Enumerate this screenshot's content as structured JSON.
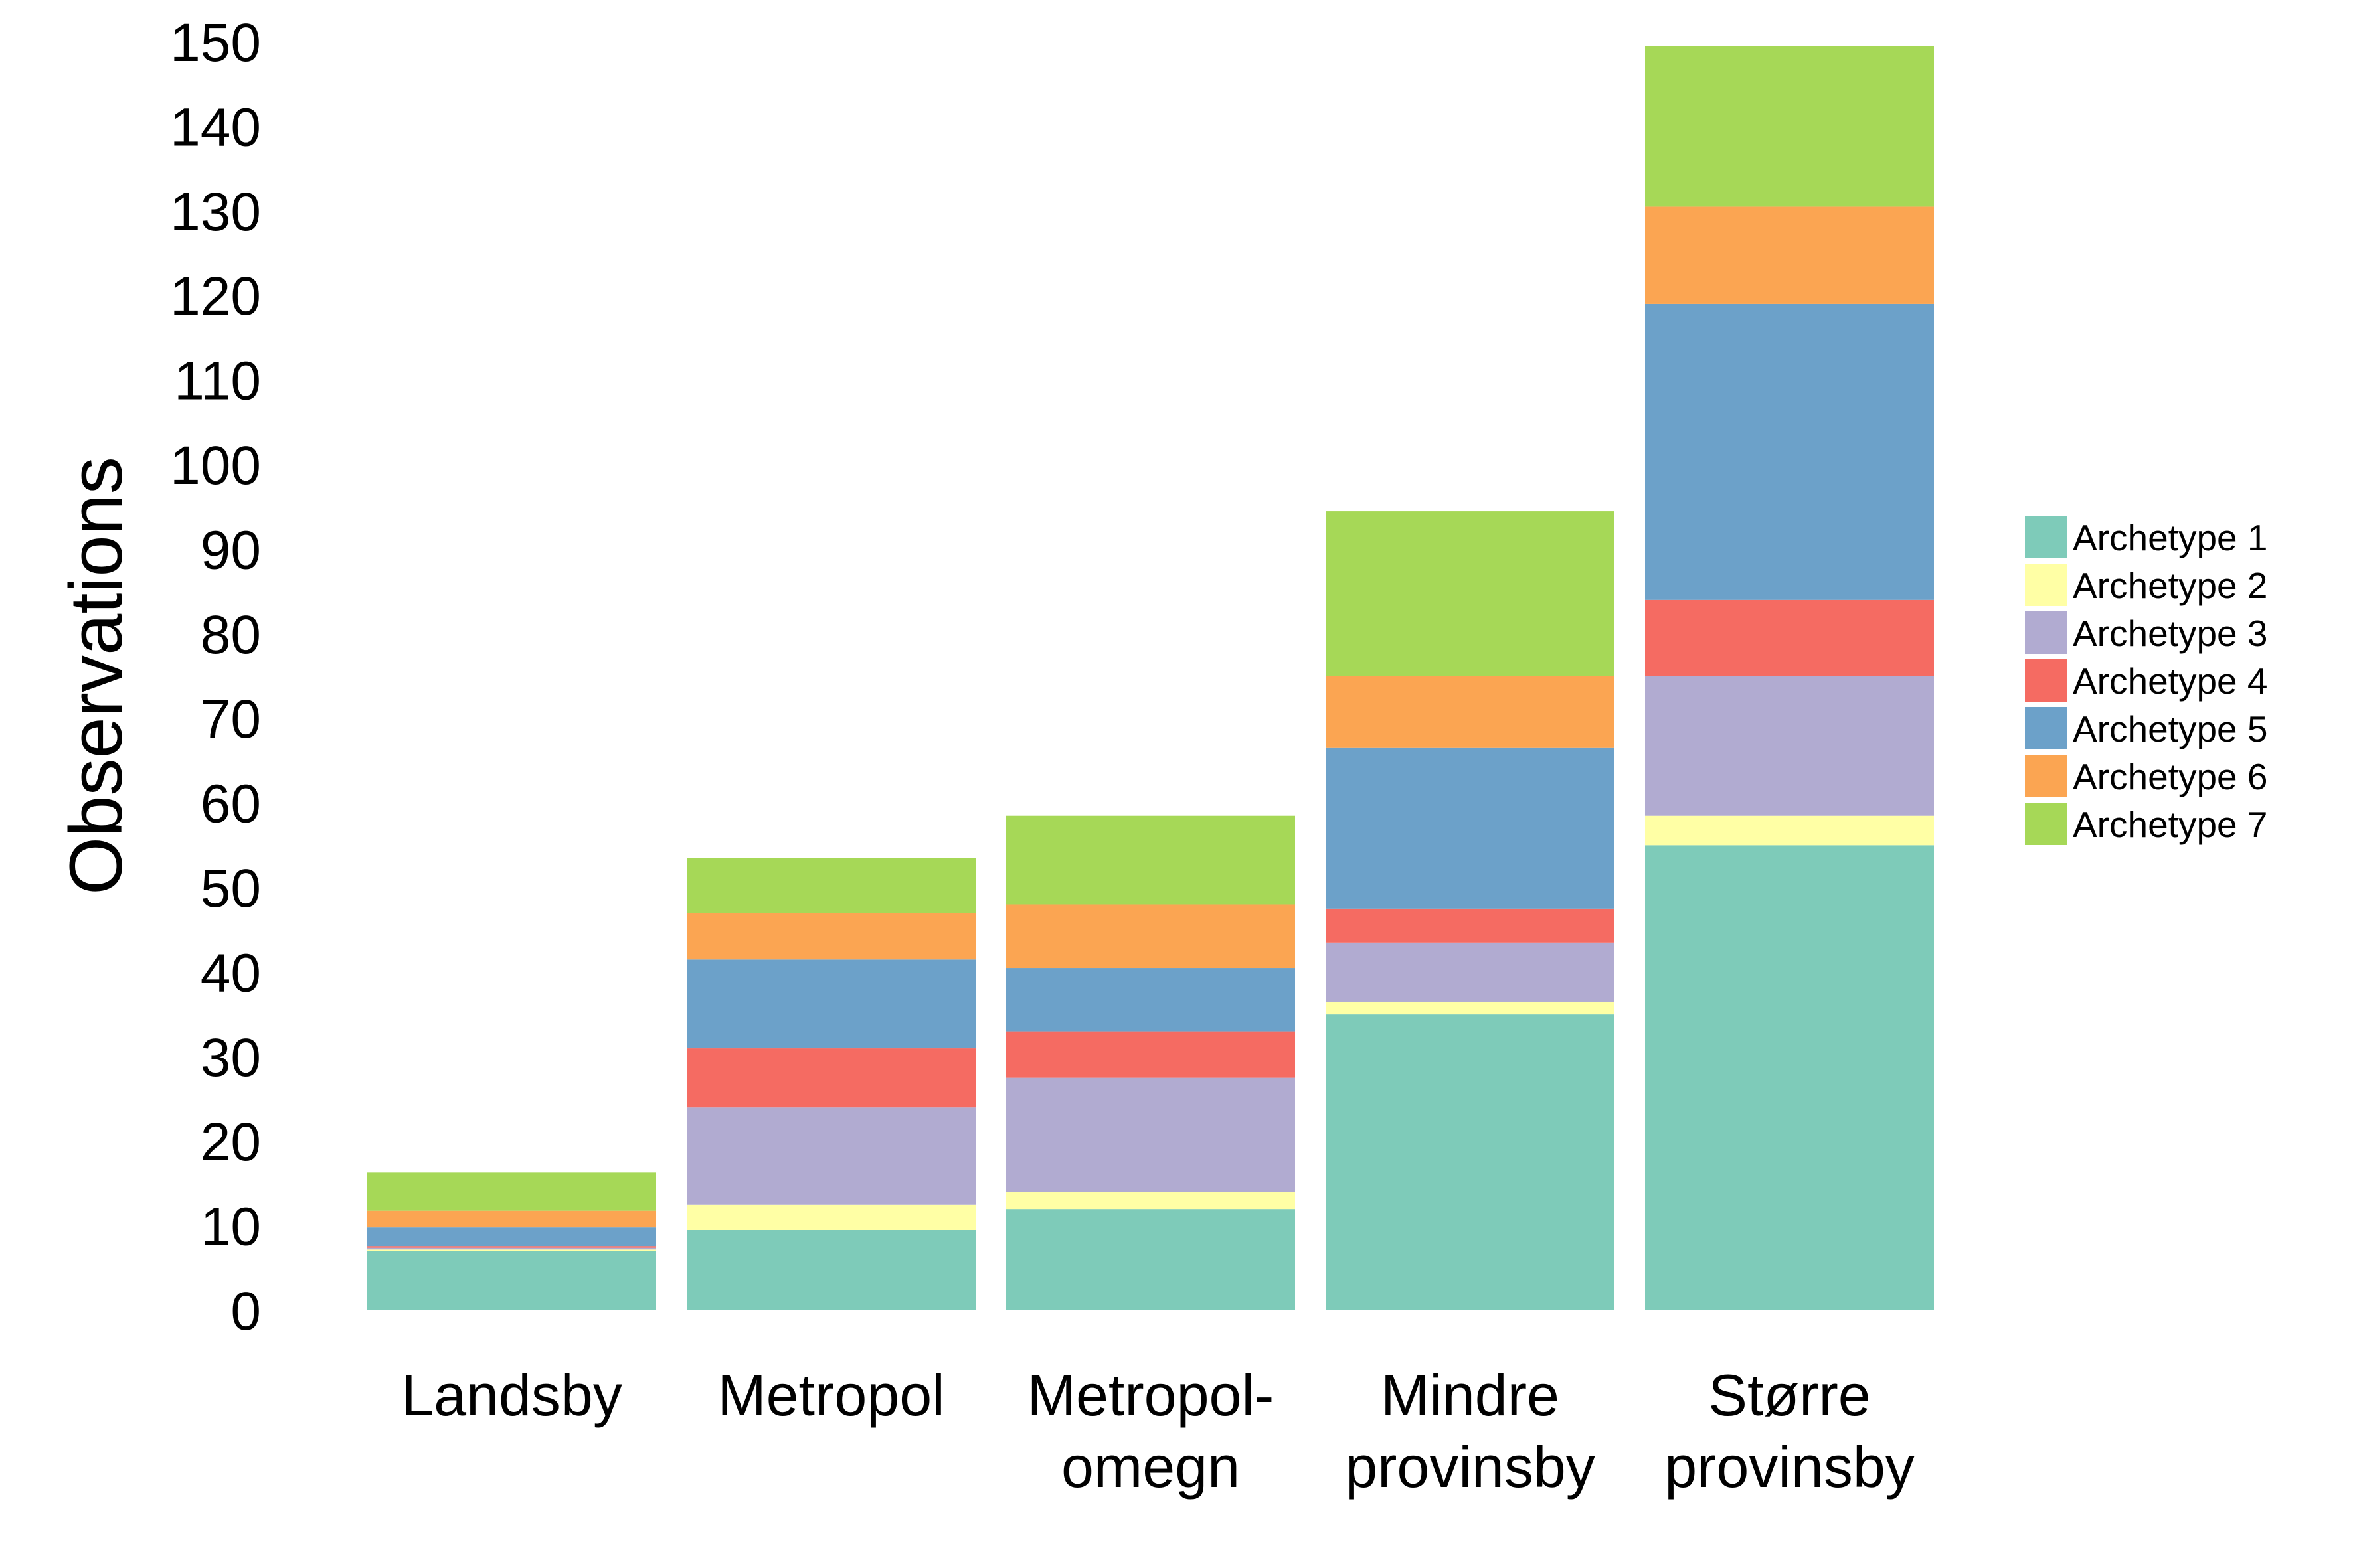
{
  "chart_data": {
    "type": "bar",
    "stacked": true,
    "title": "",
    "xlabel": "",
    "ylabel": "Observations",
    "ylim": [
      0,
      150
    ],
    "yticks": [
      0,
      10,
      20,
      30,
      40,
      50,
      60,
      70,
      80,
      90,
      100,
      110,
      120,
      130,
      140,
      150
    ],
    "grid": false,
    "legend_position": "right",
    "categories": [
      [
        "Landsby"
      ],
      [
        "Metropol"
      ],
      [
        "Metropol-",
        "omegn"
      ],
      [
        "Mindre",
        "provinsby"
      ],
      [
        "Større",
        "provinsby"
      ]
    ],
    "series": [
      {
        "name": "Archetype 1",
        "color": "#7ecbb9",
        "values": [
          7,
          9.5,
          12,
          35,
          55
        ]
      },
      {
        "name": "Archetype 2",
        "color": "#ffffa5",
        "values": [
          0.2,
          3,
          2,
          1.5,
          3.5
        ]
      },
      {
        "name": "Archetype 3",
        "color": "#b1abd1",
        "values": [
          0.2,
          11.5,
          13.5,
          7,
          16.5
        ]
      },
      {
        "name": "Archetype 4",
        "color": "#f56b62",
        "values": [
          0.2,
          7,
          5.5,
          4,
          9
        ]
      },
      {
        "name": "Archetype 5",
        "color": "#6ca1c9",
        "values": [
          2.2,
          10.5,
          7.5,
          19,
          35
        ]
      },
      {
        "name": "Archetype 6",
        "color": "#fba552",
        "values": [
          2,
          5.5,
          7.5,
          8.5,
          11.5
        ]
      },
      {
        "name": "Archetype 7",
        "color": "#a6d857",
        "values": [
          4.5,
          6.5,
          10.5,
          19.5,
          19
        ]
      }
    ]
  }
}
